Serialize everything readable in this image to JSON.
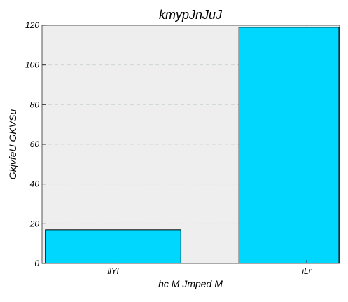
{
  "chart_data": {
    "type": "bar",
    "title": "kmypJnJuJ",
    "xlabel": "hc M Jmped  M",
    "ylabel": "GkjvfeU GKVSu",
    "categories": [
      "llYl",
      "iLr"
    ],
    "values": [
      17,
      119
    ],
    "ylim": [
      0,
      120
    ],
    "yticks": [
      0,
      20,
      40,
      60,
      80,
      100,
      120
    ],
    "grid": true,
    "legend": "none",
    "colors": {
      "bar_fill": "#00d7ff",
      "bar_edge": "#000000",
      "plot_background": "#eeeeee",
      "grid": "#cfd8cf"
    }
  }
}
